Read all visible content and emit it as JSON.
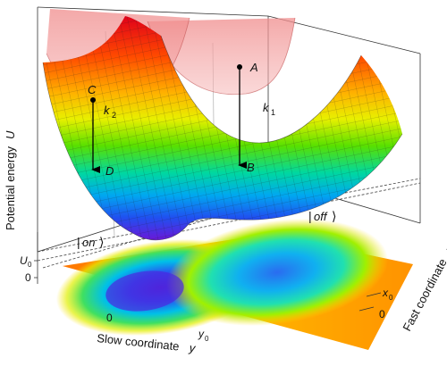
{
  "labels": {
    "point_a": "A",
    "point_b": "B",
    "point_c": "C",
    "point_d": "D",
    "rate_k2": "k",
    "rate_k2_sub": "2",
    "rate_k1": "k",
    "rate_k1_sub": "1",
    "state_on": "on",
    "state_off": "off",
    "axis_z_title": "Potential energy",
    "axis_z_symbol": "U",
    "axis_z_tick_u0": "U",
    "axis_z_tick_u0_sub": "0",
    "axis_z_tick_zero": "0",
    "axis_y_title": "Slow coordinate",
    "axis_y_symbol": "y",
    "axis_y_tick_zero": "0",
    "axis_y_tick_y0": "y",
    "axis_y_tick_y0_sub": "0",
    "axis_x_title": "Fast coordinate",
    "axis_x_symbol": "x",
    "axis_x_tick_x0": "x",
    "axis_x_tick_x0_sub": "0",
    "axis_x_tick_zero": "0"
  },
  "colors": {
    "upper_surface": "#e87878",
    "mesh": "#1a1a1a",
    "arrows": "#000000",
    "map_low": "#3a1fd8",
    "map_high": "#ff2a00"
  }
}
